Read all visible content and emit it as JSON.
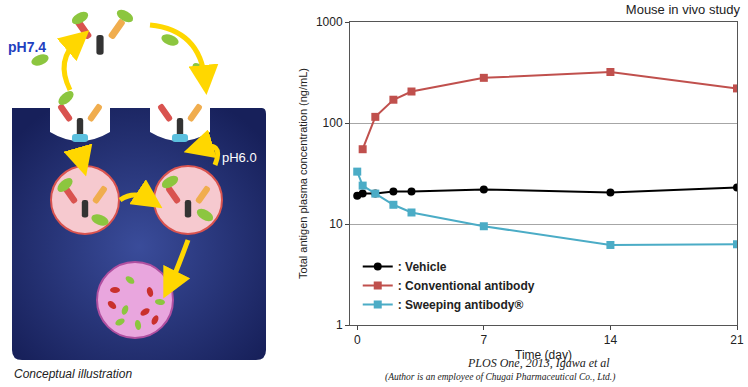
{
  "chart_data": {
    "type": "line",
    "x_label": "Time (day)",
    "y_label": "Total antigen plasma concentration (ng/mL)",
    "x": [
      0,
      0.3,
      1,
      2,
      3,
      7,
      14,
      21
    ],
    "series": [
      {
        "name": ": Vehicle",
        "color": "#000000",
        "marker": "circle",
        "values": [
          19,
          20,
          20,
          21,
          21,
          22,
          20.5,
          23
        ]
      },
      {
        "name": ": Conventional antibody",
        "color": "#c0504d",
        "marker": "square",
        "values": [
          null,
          55,
          115,
          170,
          205,
          280,
          320,
          220
        ]
      },
      {
        "name": ": Sweeping antibody®",
        "color": "#4bacc6",
        "marker": "square",
        "values": [
          33,
          24,
          20,
          15.5,
          13,
          9.5,
          6.2,
          6.3
        ]
      }
    ],
    "log": "y",
    "xlim": [
      -0.4,
      21
    ],
    "xticks": [
      0,
      7,
      14,
      21
    ],
    "ylim": [
      1,
      1000
    ],
    "yticks": [
      1,
      10,
      100,
      1000
    ],
    "grid": true,
    "legend": "lower left"
  },
  "study_label": "Mouse in vivo study",
  "illustration": {
    "outside_label": "pH7.4",
    "endosome_label": "pH6.0",
    "caption": "Conceptual illustration"
  },
  "citation": {
    "reference": "PLOS One, 2013, Igawa et al",
    "note": "(Author is an employee of Chugai Pharmaceutical Co., Ltd.)"
  }
}
